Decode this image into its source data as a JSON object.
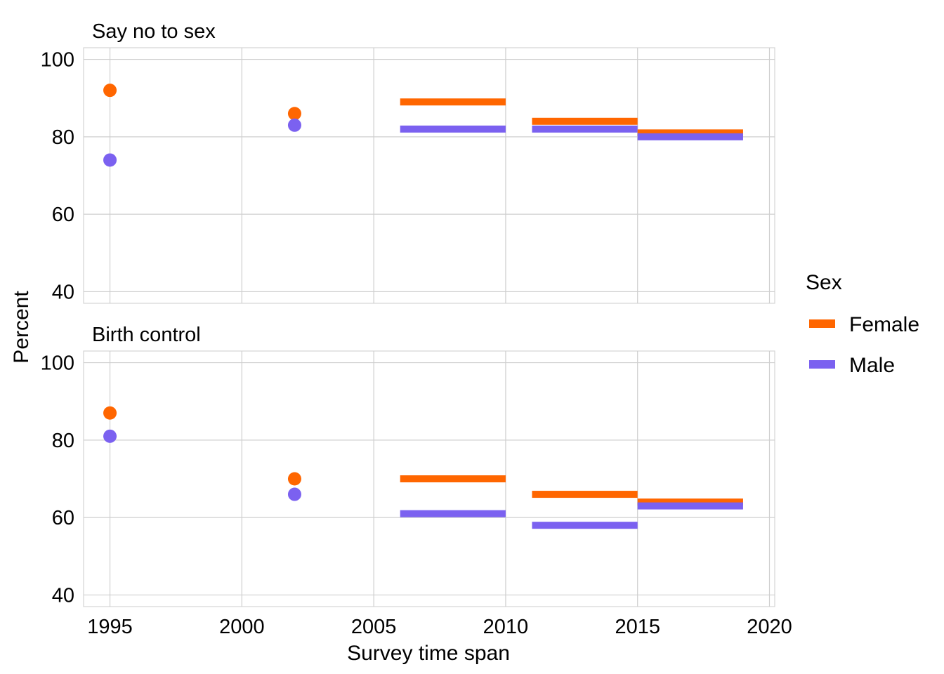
{
  "chart_data": {
    "type": "faceted-scatter-segment",
    "xlabel": "Survey time span",
    "ylabel": "Percent",
    "xlim": [
      1994,
      2020.2
    ],
    "ylim": [
      37,
      103
    ],
    "x_ticks": [
      1995,
      2000,
      2005,
      2010,
      2015,
      2020
    ],
    "y_ticks": [
      40,
      60,
      80,
      100
    ],
    "grid": true,
    "legend": {
      "title": "Sex",
      "position": "right",
      "entries": [
        {
          "name": "Female",
          "color": "#FF6600"
        },
        {
          "name": "Male",
          "color": "#7B61F0"
        }
      ]
    },
    "panels": [
      {
        "title": "Say no to sex",
        "points": [
          {
            "sex": "Female",
            "x": 1995,
            "y": 92
          },
          {
            "sex": "Male",
            "x": 1995,
            "y": 74
          },
          {
            "sex": "Female",
            "x": 2002,
            "y": 86
          },
          {
            "sex": "Male",
            "x": 2002,
            "y": 83
          }
        ],
        "segments": [
          {
            "sex": "Female",
            "x_start": 2006,
            "x_end": 2010,
            "y": 89
          },
          {
            "sex": "Male",
            "x_start": 2006,
            "x_end": 2010,
            "y": 82
          },
          {
            "sex": "Female",
            "x_start": 2011,
            "x_end": 2015,
            "y": 84
          },
          {
            "sex": "Male",
            "x_start": 2011,
            "x_end": 2015,
            "y": 82
          },
          {
            "sex": "Female",
            "x_start": 2015,
            "x_end": 2019,
            "y": 81
          },
          {
            "sex": "Male",
            "x_start": 2015,
            "x_end": 2019,
            "y": 80
          }
        ]
      },
      {
        "title": "Birth control",
        "points": [
          {
            "sex": "Female",
            "x": 1995,
            "y": 87
          },
          {
            "sex": "Male",
            "x": 1995,
            "y": 81
          },
          {
            "sex": "Female",
            "x": 2002,
            "y": 70
          },
          {
            "sex": "Male",
            "x": 2002,
            "y": 66
          }
        ],
        "segments": [
          {
            "sex": "Female",
            "x_start": 2006,
            "x_end": 2010,
            "y": 70
          },
          {
            "sex": "Male",
            "x_start": 2006,
            "x_end": 2010,
            "y": 61
          },
          {
            "sex": "Female",
            "x_start": 2011,
            "x_end": 2015,
            "y": 66
          },
          {
            "sex": "Male",
            "x_start": 2011,
            "x_end": 2015,
            "y": 58
          },
          {
            "sex": "Female",
            "x_start": 2015,
            "x_end": 2019,
            "y": 64
          },
          {
            "sex": "Male",
            "x_start": 2015,
            "x_end": 2019,
            "y": 63
          }
        ]
      }
    ]
  }
}
